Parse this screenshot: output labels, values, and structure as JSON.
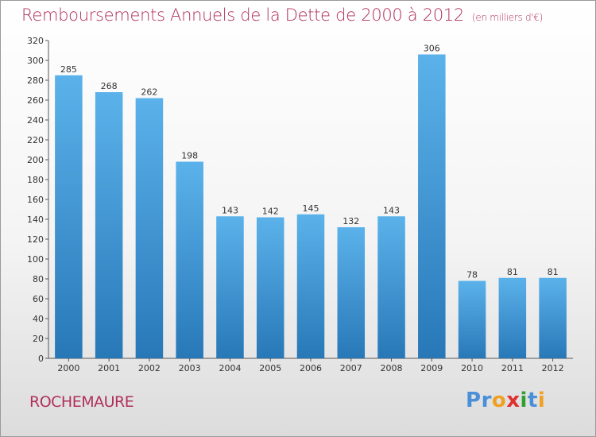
{
  "header": {
    "title": "Remboursements Annuels de la Dette de 2000 à 2012",
    "subtitle": "(en milliers d'€)"
  },
  "footer": {
    "town": "ROCHEMAURE",
    "logo_text": "Proxiti",
    "logo_colors": [
      "#4a90d9",
      "#4a90d9",
      "#f0a020",
      "#e03030",
      "#30a030",
      "#4a90d9",
      "#f0a020"
    ]
  },
  "colors": {
    "title": "#b0305a",
    "bar_top": "#5bb2ea",
    "bar_bottom": "#2878b8",
    "axis": "#555555"
  },
  "chart_data": {
    "type": "bar",
    "categories": [
      "2000",
      "2001",
      "2002",
      "2003",
      "2004",
      "2005",
      "2006",
      "2007",
      "2008",
      "2009",
      "2010",
      "2011",
      "2012"
    ],
    "values": [
      285,
      268,
      262,
      198,
      143,
      142,
      145,
      132,
      143,
      306,
      78,
      81,
      81
    ],
    "ylim": [
      0,
      320
    ],
    "yticks": [
      0,
      20,
      40,
      60,
      80,
      100,
      120,
      140,
      160,
      180,
      200,
      220,
      240,
      260,
      280,
      300,
      320
    ],
    "grid": false,
    "legend": "none",
    "data_labels": true
  }
}
